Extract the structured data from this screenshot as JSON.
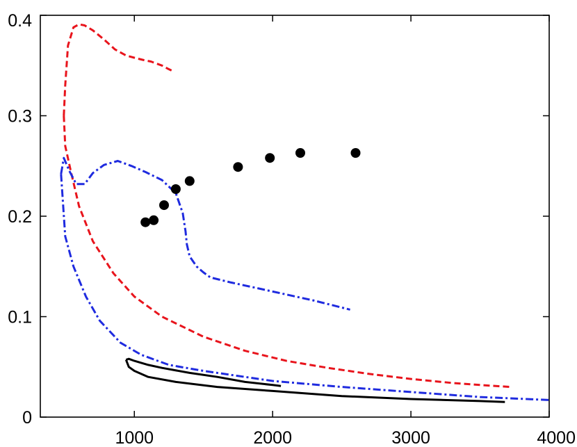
{
  "chart_data": {
    "type": "line",
    "title": "",
    "xlabel": "",
    "ylabel": "",
    "xlim": [
      320,
      4000
    ],
    "ylim": [
      0,
      0.4
    ],
    "xticks": [
      1000,
      2000,
      3000,
      4000
    ],
    "yticks": [
      0,
      0.1,
      0.2,
      0.3,
      0.4
    ],
    "xtick_labels": [
      "1000",
      "2000",
      "3000",
      "4000"
    ],
    "ytick_labels": [
      "0",
      "0.1",
      "0.2",
      "0.3",
      "0.4"
    ],
    "grid": false,
    "legend": "none",
    "series": [
      {
        "style": "dashed",
        "color": "#e8141c",
        "x": [
          490,
          500,
          520,
          560,
          600,
          640,
          700,
          780,
          860,
          940,
          1020,
          1080,
          1120,
          1160,
          1200,
          1240,
          1270
        ],
        "y": [
          0.3,
          0.33,
          0.37,
          0.388,
          0.391,
          0.39,
          0.385,
          0.376,
          0.366,
          0.36,
          0.357,
          0.355,
          0.354,
          0.352,
          0.35,
          0.347,
          0.345
        ]
      },
      {
        "style": "dashed",
        "color": "#e8141c",
        "x": [
          490,
          500,
          540,
          600,
          700,
          850,
          1000,
          1200,
          1500,
          1800,
          2100,
          2400,
          2700,
          3000,
          3300,
          3500,
          3720
        ],
        "y": [
          0.3,
          0.27,
          0.245,
          0.21,
          0.175,
          0.143,
          0.12,
          0.1,
          0.08,
          0.066,
          0.056,
          0.049,
          0.043,
          0.038,
          0.034,
          0.032,
          0.03
        ]
      },
      {
        "style": "dash-dot",
        "color": "#1f2bdf",
        "x": [
          470,
          490,
          530,
          580,
          640,
          700,
          780,
          880,
          980,
          1080,
          1200,
          1300,
          1350,
          1370,
          1380,
          1400,
          1450,
          1500,
          1550,
          1700,
          1900,
          2100,
          2300,
          2560
        ],
        "y": [
          0.242,
          0.258,
          0.245,
          0.232,
          0.232,
          0.243,
          0.251,
          0.255,
          0.25,
          0.244,
          0.236,
          0.223,
          0.203,
          0.185,
          0.172,
          0.16,
          0.15,
          0.144,
          0.139,
          0.134,
          0.128,
          0.122,
          0.116,
          0.107
        ]
      },
      {
        "style": "dash-dot",
        "color": "#1f2bdf",
        "x": [
          470,
          500,
          560,
          650,
          750,
          900,
          1050,
          1250,
          1500,
          2000,
          2500,
          3000,
          3500,
          4000
        ],
        "y": [
          0.242,
          0.18,
          0.15,
          0.12,
          0.096,
          0.074,
          0.062,
          0.052,
          0.046,
          0.036,
          0.03,
          0.025,
          0.02,
          0.017
        ]
      },
      {
        "style": "solid",
        "color": "#000000",
        "x": [
          940,
          960,
          1000,
          1100,
          1200,
          1400,
          1600,
          1800,
          2000,
          2060
        ],
        "y": [
          0.057,
          0.058,
          0.056,
          0.052,
          0.049,
          0.044,
          0.04,
          0.035,
          0.032,
          0.031
        ]
      },
      {
        "style": "solid",
        "color": "#000000",
        "x": [
          940,
          960,
          1000,
          1100,
          1300,
          1600,
          2000,
          2500,
          3000,
          3500,
          3680
        ],
        "y": [
          0.057,
          0.05,
          0.046,
          0.04,
          0.035,
          0.03,
          0.026,
          0.021,
          0.018,
          0.016,
          0.015
        ]
      }
    ],
    "points": {
      "style": "marker",
      "color": "#000000",
      "x": [
        1080,
        1140,
        1215,
        1300,
        1400,
        1750,
        1980,
        2200,
        2600
      ],
      "y": [
        0.194,
        0.196,
        0.211,
        0.227,
        0.235,
        0.249,
        0.258,
        0.263,
        0.263
      ]
    }
  }
}
